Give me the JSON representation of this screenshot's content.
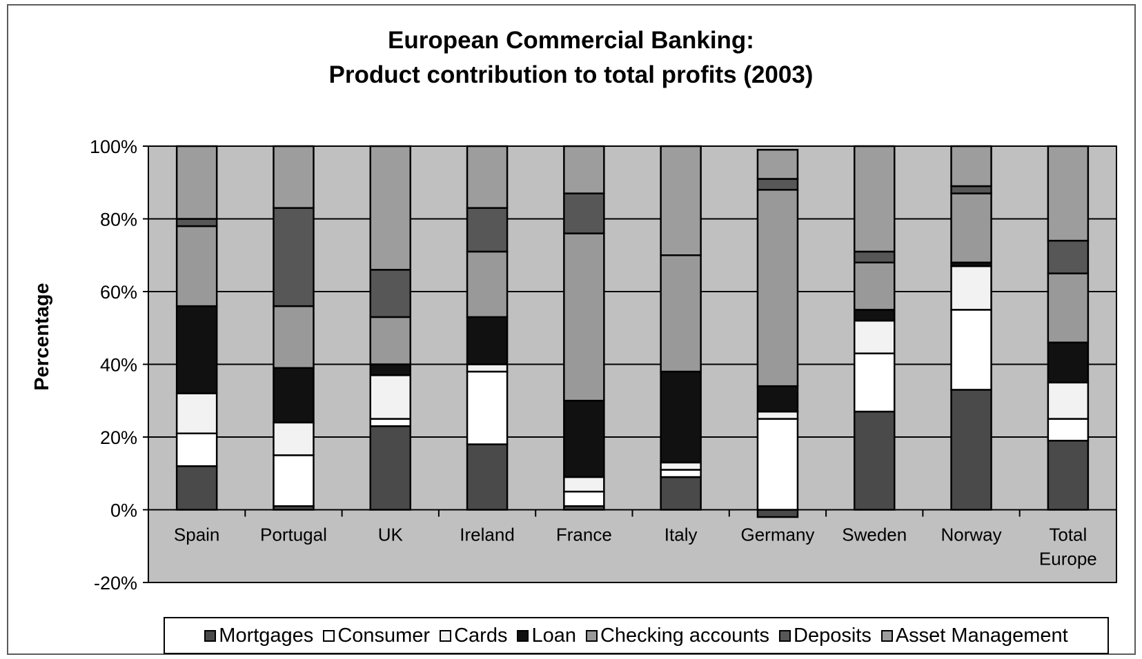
{
  "chart_data": {
    "type": "bar",
    "stacked": true,
    "title": "European Commercial Banking:",
    "subtitle": "Product contribution to total profits (2003)",
    "ylabel": "Percentage",
    "xlabel": "",
    "ylim": [
      -20,
      100
    ],
    "yticks": [
      "100%",
      "80%",
      "60%",
      "40%",
      "20%",
      "0%",
      "-20%"
    ],
    "ytick_values": [
      100,
      80,
      60,
      40,
      20,
      0,
      -20
    ],
    "grid": true,
    "legend_position": "bottom",
    "categories": [
      {
        "line1": "Spain",
        "line2": ""
      },
      {
        "line1": "Portugal",
        "line2": ""
      },
      {
        "line1": "UK",
        "line2": ""
      },
      {
        "line1": "Ireland",
        "line2": ""
      },
      {
        "line1": "France",
        "line2": ""
      },
      {
        "line1": "Italy",
        "line2": ""
      },
      {
        "line1": "Germany",
        "line2": ""
      },
      {
        "line1": "Sweden",
        "line2": ""
      },
      {
        "line1": "Norway",
        "line2": ""
      },
      {
        "line1": "Total",
        "line2": "Europe"
      }
    ],
    "series": [
      {
        "name": "Mortgages",
        "color": "#4a4a4a",
        "values": [
          12,
          1,
          23,
          18,
          1,
          9,
          -2,
          27,
          33,
          19
        ]
      },
      {
        "name": "Consumer",
        "color": "#ffffff",
        "values": [
          9,
          14,
          2,
          20,
          4,
          2,
          25,
          16,
          22,
          6
        ]
      },
      {
        "name": "Cards",
        "color": "#f2f2f2",
        "values": [
          11,
          9,
          12,
          2,
          4,
          2,
          2,
          9,
          12,
          10
        ]
      },
      {
        "name": "Loan",
        "color": "#111111",
        "values": [
          24,
          15,
          3,
          13,
          21,
          25,
          7,
          3,
          1,
          11
        ]
      },
      {
        "name": "Checking accounts",
        "color": "#999999",
        "values": [
          22,
          17,
          13,
          18,
          46,
          32,
          54,
          13,
          19,
          19
        ]
      },
      {
        "name": "Deposits",
        "color": "#575757",
        "values": [
          2,
          27,
          13,
          12,
          11,
          0,
          3,
          3,
          2,
          9
        ]
      },
      {
        "name": "Asset Management",
        "color": "#9d9d9d",
        "values": [
          20,
          17,
          34,
          17,
          13,
          30,
          8,
          29,
          11,
          26
        ]
      }
    ]
  },
  "legend_items": [
    {
      "label": "Mortgages",
      "color": "#4a4a4a"
    },
    {
      "label": "Consumer",
      "color": "#ffffff"
    },
    {
      "label": "Cards",
      "color": "#f2f2f2"
    },
    {
      "label": "Loan",
      "color": "#111111"
    },
    {
      "label": "Checking accounts",
      "color": "#999999"
    },
    {
      "label": "Deposits",
      "color": "#575757"
    },
    {
      "label": "Asset Management",
      "color": "#9d9d9d"
    }
  ],
  "colors": {
    "plot_background": "#c0c0c0",
    "gridline": "#000000",
    "bar_outline": "#000000"
  }
}
